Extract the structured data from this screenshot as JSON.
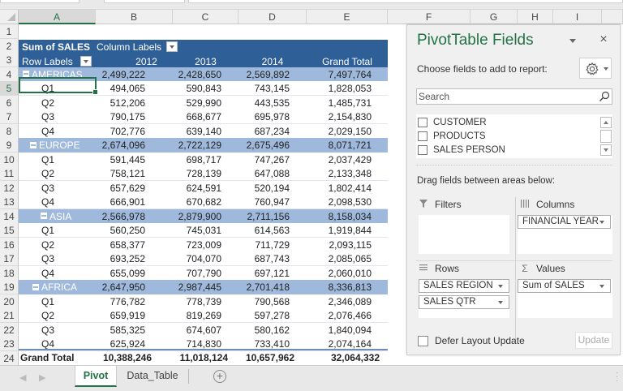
{
  "columns": [
    "A",
    "B",
    "C",
    "D",
    "E",
    "F",
    "G",
    "H",
    "I"
  ],
  "selected_column": "A",
  "selected_row": 5,
  "rows": [
    1,
    2,
    3,
    4,
    5,
    6,
    7,
    8,
    9,
    10,
    11,
    12,
    13,
    14,
    15,
    16,
    17,
    18,
    19,
    20,
    21,
    22,
    23,
    24
  ],
  "pivot": {
    "value_field": "Sum of SALES",
    "column_labels": "Column Labels",
    "row_labels": "Row Labels",
    "headers": [
      "2012",
      "2013",
      "2014",
      "Grand Total"
    ],
    "regions": [
      {
        "name": "AMERICAS",
        "totals": [
          "2,499,222",
          "2,428,650",
          "2,569,892",
          "7,497,764"
        ],
        "quarters": [
          {
            "q": "Q1",
            "values": [
              "494,065",
              "590,843",
              "743,145",
              "1,828,053"
            ]
          },
          {
            "q": "Q2",
            "values": [
              "512,206",
              "529,990",
              "443,535",
              "1,485,731"
            ]
          },
          {
            "q": "Q3",
            "values": [
              "790,175",
              "668,677",
              "695,978",
              "2,154,830"
            ]
          },
          {
            "q": "Q4",
            "values": [
              "702,776",
              "639,140",
              "687,234",
              "2,029,150"
            ]
          }
        ]
      },
      {
        "name": "EUROPE",
        "totals": [
          "2,674,096",
          "2,722,129",
          "2,675,496",
          "8,071,721"
        ],
        "quarters": [
          {
            "q": "Q1",
            "values": [
              "591,445",
              "698,717",
              "747,267",
              "2,037,429"
            ]
          },
          {
            "q": "Q2",
            "values": [
              "758,121",
              "728,139",
              "647,088",
              "2,133,348"
            ]
          },
          {
            "q": "Q3",
            "values": [
              "657,629",
              "624,591",
              "520,194",
              "1,802,414"
            ]
          },
          {
            "q": "Q4",
            "values": [
              "666,901",
              "670,682",
              "760,947",
              "2,098,530"
            ]
          }
        ]
      },
      {
        "name": "ASIA",
        "totals": [
          "2,566,978",
          "2,879,900",
          "2,711,156",
          "8,158,034"
        ],
        "quarters": [
          {
            "q": "Q1",
            "values": [
              "560,250",
              "745,031",
              "614,563",
              "1,919,844"
            ]
          },
          {
            "q": "Q2",
            "values": [
              "658,377",
              "723,009",
              "711,729",
              "2,093,115"
            ]
          },
          {
            "q": "Q3",
            "values": [
              "693,252",
              "704,070",
              "687,743",
              "2,085,065"
            ]
          },
          {
            "q": "Q4",
            "values": [
              "655,099",
              "707,790",
              "697,121",
              "2,060,010"
            ]
          }
        ]
      },
      {
        "name": "AFRICA",
        "totals": [
          "2,647,950",
          "2,987,445",
          "2,701,418",
          "8,336,813"
        ],
        "quarters": [
          {
            "q": "Q1",
            "values": [
              "776,782",
              "778,739",
              "790,568",
              "2,346,089"
            ]
          },
          {
            "q": "Q2",
            "values": [
              "659,919",
              "819,269",
              "597,278",
              "2,076,466"
            ]
          },
          {
            "q": "Q3",
            "values": [
              "585,325",
              "674,607",
              "580,162",
              "1,840,094"
            ]
          },
          {
            "q": "Q4",
            "values": [
              "625,924",
              "714,830",
              "733,410",
              "2,074,164"
            ]
          }
        ]
      }
    ],
    "grand_total": {
      "label": "Grand Total",
      "values": [
        "10,388,246",
        "11,018,124",
        "10,657,962",
        "32,064,332"
      ]
    }
  },
  "pane": {
    "title": "PivotTable Fields",
    "close": "×",
    "choose_label": "Choose fields to add to report:",
    "search_placeholder": "Search",
    "fields": [
      "CUSTOMER",
      "PRODUCTS",
      "SALES PERSON"
    ],
    "drag_label": "Drag fields between areas below:",
    "areas": {
      "filters": {
        "label": "Filters",
        "icon": "filter-icon",
        "items": []
      },
      "columns": {
        "label": "Columns",
        "icon": "columns-icon",
        "items": [
          "FINANCIAL YEAR"
        ]
      },
      "rows": {
        "label": "Rows",
        "icon": "rows-icon",
        "items": [
          "SALES REGION",
          "SALES QTR"
        ]
      },
      "values": {
        "label": "Values",
        "icon": "sigma-icon",
        "items": [
          "Sum of SALES"
        ]
      }
    },
    "defer_label": "Defer Layout Update",
    "update_label": "Update"
  },
  "sheets": {
    "tabs": [
      "Pivot",
      "Data_Table"
    ],
    "active": "Pivot",
    "add": "+"
  },
  "colors": {
    "header_blue": "#2f5f97",
    "region_blue": "#9fb9dc",
    "excel_green": "#217346"
  }
}
